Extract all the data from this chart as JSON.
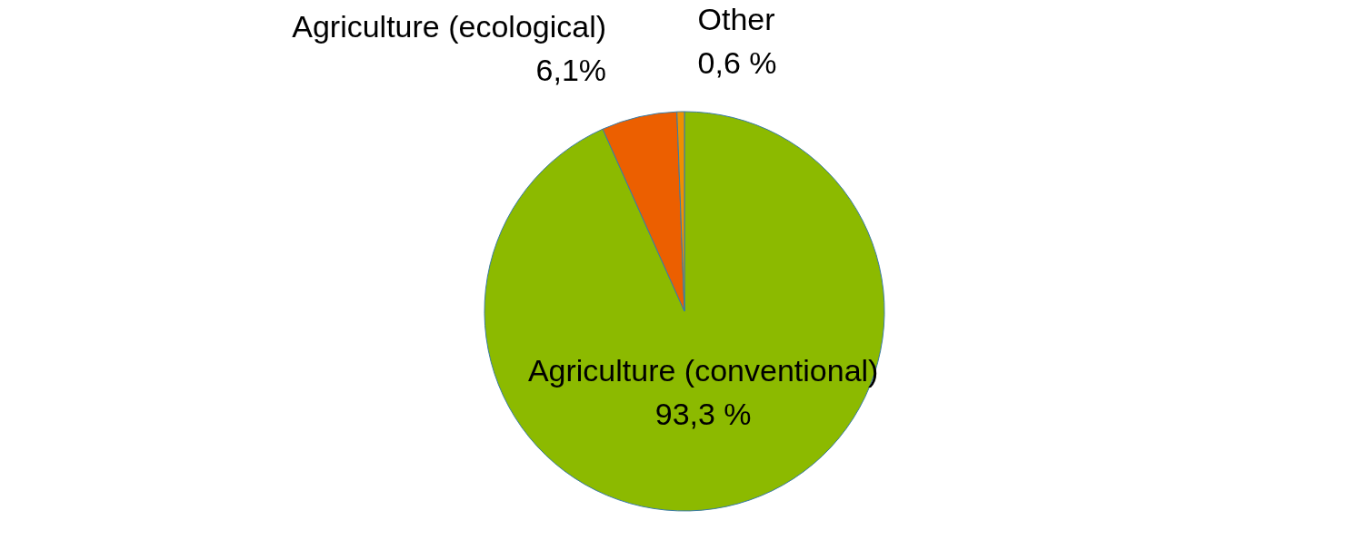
{
  "chart_data": {
    "type": "pie",
    "categories": [
      "Agriculture (conventional)",
      "Agriculture (ecological)",
      "Other"
    ],
    "values": [
      93.3,
      6.1,
      0.6
    ],
    "value_labels": [
      "93,3 %",
      "6,1%",
      "0,6 %"
    ],
    "colors": [
      "#8cba00",
      "#ec5f00",
      "#ee9000"
    ]
  }
}
